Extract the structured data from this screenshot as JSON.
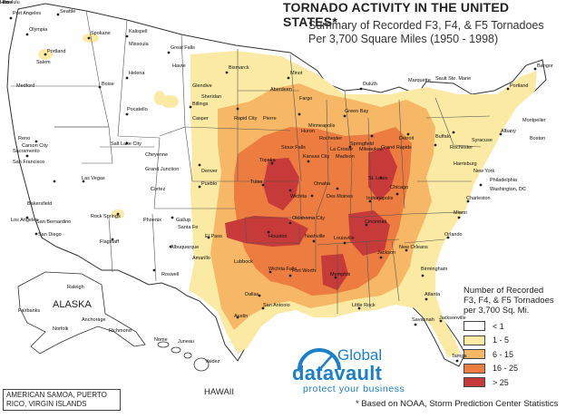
{
  "title": "TORNADO ACTIVITY IN THE UNITED STATES*",
  "subtitle_line1": "Summary of Recorded F3, F4, & F5 Tornadoes",
  "subtitle_line2": "Per 3,700 Square Miles (1950 - 1998)",
  "legend": {
    "title_line1": "Number of Recorded",
    "title_line2": "F3, F4, & F5 Tornadoes",
    "title_line3": "per 3,700 Sq. Mi.",
    "items": [
      {
        "label": "< 1",
        "color": "#ffffff"
      },
      {
        "label": "1 - 5",
        "color": "#fbeaa4"
      },
      {
        "label": "6 - 15",
        "color": "#f6b866"
      },
      {
        "label": "16 - 25",
        "color": "#ec7c40"
      },
      {
        "label": "> 25",
        "color": "#c63a3a"
      }
    ]
  },
  "labels": {
    "alaska": "ALASKA",
    "hawaii": "HAWAII",
    "territories": "AMERICAN SAMOA, PUERTO RICO, VIRGIN ISLANDS",
    "footnote": "* Based on NOAA, Storm Prediction Center Statistics"
  },
  "logo": {
    "top": "Global",
    "main": "datavault",
    "tagline": "protect your business"
  },
  "cities": [
    "Port Angeles",
    "Olympia",
    "Seattle",
    "Spokane",
    "Portland",
    "Salem",
    "Kalispell",
    "Missoula",
    "Great Falls",
    "Helena",
    "Glendive",
    "Havre",
    "Bismarck",
    "Minot",
    "Fargo",
    "Duluth",
    "Marquette",
    "Sault Ste. Marie",
    "Bangor",
    "Portland",
    "Albany",
    "Boston",
    "Montpelier",
    "Medford",
    "Boise",
    "Pocatello",
    "Billings",
    "Sheridan",
    "Casper",
    "Rapid City",
    "Pierre",
    "Huron",
    "Aberdeen",
    "Sioux Falls",
    "Minneapolis",
    "Rochester",
    "La Crosse",
    "Green Bay",
    "Milwaukee",
    "Madison",
    "Grand Rapids",
    "Detroit",
    "Buffalo",
    "Rochester",
    "Syracuse",
    "Harrisburg",
    "New York",
    "Philadelphia",
    "Washington, DC",
    "Reno",
    "Carson City",
    "Sacramento",
    "San Francisco",
    "Bakersfield",
    "Los Angeles",
    "San Bernardino",
    "San Diego",
    "Las Vegas",
    "Salt Lake City",
    "Grand Junction",
    "Denver",
    "Pueblo",
    "Cortez",
    "Cheyenne",
    "Rock Springs",
    "Flagstaff",
    "Phoenix",
    "Gallup",
    "Santa Fe",
    "Albuquerque",
    "Roswell",
    "El Paso",
    "Amarillo",
    "Lubbock",
    "Wichita Falls",
    "Fort Worth",
    "Dallas",
    "Austin",
    "San Antonio",
    "Houston",
    "Oklahoma City",
    "Tulsa",
    "Wichita",
    "Topeka",
    "Kansas City",
    "Omaha",
    "Des Moines",
    "Springfield",
    "St. Louis",
    "Chicago",
    "Indianapolis",
    "Cincinnati",
    "Louisville",
    "Nashville",
    "Memphis",
    "Little Rock",
    "Jackson",
    "New Orleans",
    "Birmingham",
    "Atlanta",
    "Savannah",
    "Jacksonville",
    "Tampa",
    "Orlando",
    "Miami",
    "Charleston",
    "Raleigh",
    "Norfolk",
    "Richmond",
    "Fairbanks",
    "Anchorage",
    "Juneau",
    "Nome",
    "Valdez",
    "Honolulu",
    "Lihue",
    "Hilo"
  ]
}
